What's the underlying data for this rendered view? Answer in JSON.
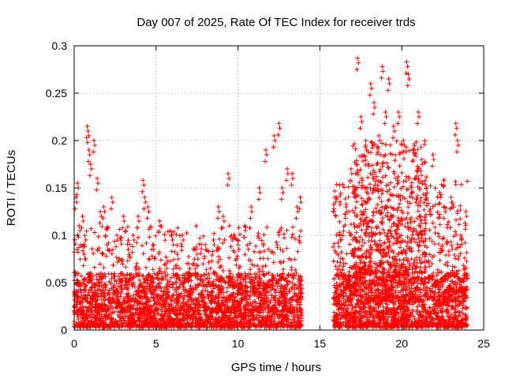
{
  "chart_data": {
    "type": "scatter",
    "title": "Day 007 of 2025, Rate Of TEC Index for receiver trds",
    "xlabel": "GPS time / hours",
    "ylabel": "ROTI / TECUs",
    "xlim": [
      0,
      25
    ],
    "ylim": [
      0,
      0.3
    ],
    "x_ticks": [
      0,
      5,
      10,
      15,
      20,
      25
    ],
    "x_tick_labels": [
      "0",
      "5",
      "10",
      "15",
      "20",
      "25"
    ],
    "y_ticks": [
      0,
      0.05,
      0.1,
      0.15,
      0.2,
      0.25,
      0.3
    ],
    "y_tick_labels": [
      "0",
      "0.05",
      "0.1",
      "0.15",
      "0.2",
      "0.25",
      "0.3"
    ],
    "grid": true,
    "marker": "+",
    "color": "#ff0000",
    "series": [
      {
        "points": [
          [
            0.1,
            0.14
          ],
          [
            0.2,
            0.155
          ],
          [
            0.3,
            0.11
          ],
          [
            0.5,
            0.12
          ],
          [
            0.6,
            0.08
          ],
          [
            0.8,
            0.215
          ],
          [
            0.85,
            0.21
          ],
          [
            0.9,
            0.19
          ],
          [
            1.0,
            0.175
          ],
          [
            1.2,
            0.2
          ],
          [
            1.4,
            0.16
          ],
          [
            1.6,
            0.125
          ],
          [
            1.8,
            0.13
          ],
          [
            2.0,
            0.09
          ],
          [
            2.3,
            0.14
          ],
          [
            2.6,
            0.1
          ],
          [
            3.0,
            0.12
          ],
          [
            3.3,
            0.085
          ],
          [
            3.6,
            0.1
          ],
          [
            3.9,
            0.12
          ],
          [
            4.2,
            0.158
          ],
          [
            4.3,
            0.14
          ],
          [
            4.5,
            0.13
          ],
          [
            4.8,
            0.09
          ],
          [
            5.2,
            0.115
          ],
          [
            5.6,
            0.07
          ],
          [
            6.0,
            0.095
          ],
          [
            6.3,
            0.08
          ],
          [
            6.6,
            0.1
          ],
          [
            7.0,
            0.07
          ],
          [
            7.5,
            0.08
          ],
          [
            8.0,
            0.09
          ],
          [
            8.5,
            0.095
          ],
          [
            8.8,
            0.13
          ],
          [
            9.1,
            0.12
          ],
          [
            9.4,
            0.165
          ],
          [
            9.6,
            0.1
          ],
          [
            10.0,
            0.09
          ],
          [
            10.4,
            0.11
          ],
          [
            10.8,
            0.13
          ],
          [
            11.3,
            0.15
          ],
          [
            11.7,
            0.19
          ],
          [
            12.2,
            0.205
          ],
          [
            12.5,
            0.218
          ],
          [
            12.7,
            0.15
          ],
          [
            13.0,
            0.17
          ],
          [
            13.3,
            0.165
          ],
          [
            13.6,
            0.13
          ],
          [
            13.8,
            0.14
          ],
          [
            15.9,
            0.14
          ],
          [
            16.2,
            0.1
          ],
          [
            16.4,
            0.075
          ],
          [
            16.6,
            0.13
          ],
          [
            16.9,
            0.17
          ],
          [
            17.3,
            0.287
          ],
          [
            17.5,
            0.225
          ],
          [
            17.8,
            0.195
          ],
          [
            18.1,
            0.26
          ],
          [
            18.3,
            0.24
          ],
          [
            18.6,
            0.205
          ],
          [
            18.8,
            0.278
          ],
          [
            19.0,
            0.23
          ],
          [
            19.2,
            0.265
          ],
          [
            19.5,
            0.215
          ],
          [
            19.8,
            0.23
          ],
          [
            20.1,
            0.2
          ],
          [
            20.3,
            0.283
          ],
          [
            20.4,
            0.27
          ],
          [
            20.7,
            0.19
          ],
          [
            21.0,
            0.23
          ],
          [
            21.2,
            0.18
          ],
          [
            21.5,
            0.15
          ],
          [
            21.9,
            0.185
          ],
          [
            22.3,
            0.145
          ],
          [
            22.6,
            0.13
          ],
          [
            23.0,
            0.14
          ],
          [
            23.3,
            0.218
          ],
          [
            23.4,
            0.2
          ],
          [
            23.6,
            0.1
          ],
          [
            23.9,
            0.125
          ]
        ],
        "dense_segments": [
          {
            "x_range": [
              0.0,
              13.9
            ],
            "y_range": [
              0.003,
              0.06
            ],
            "count": 2400
          },
          {
            "x_range": [
              0.0,
              13.9
            ],
            "y_range": [
              0.02,
              0.11
            ],
            "count": 700
          },
          {
            "x_range": [
              15.8,
              24.0
            ],
            "y_range": [
              0.003,
              0.06
            ],
            "count": 1500
          },
          {
            "x_range": [
              15.8,
              24.0
            ],
            "y_range": [
              0.03,
              0.16
            ],
            "count": 700
          },
          {
            "x_range": [
              17.0,
              21.5
            ],
            "y_range": [
              0.06,
              0.2
            ],
            "count": 500
          }
        ]
      }
    ]
  }
}
